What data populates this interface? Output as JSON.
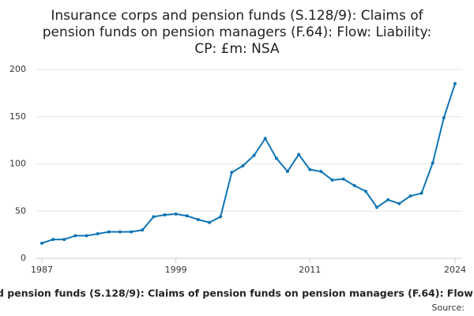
{
  "chart_data": {
    "type": "line",
    "title": [
      "Insurance corps and pension funds (S.128/9): Claims of",
      "pension funds on pension managers (F.64): Flow: Liability:",
      "CP: £m: NSA"
    ],
    "x": [
      1987,
      1988,
      1989,
      1990,
      1991,
      1992,
      1993,
      1994,
      1995,
      1996,
      1997,
      1998,
      1999,
      2000,
      2001,
      2002,
      2003,
      2004,
      2005,
      2006,
      2007,
      2008,
      2009,
      2010,
      2011,
      2012,
      2013,
      2014,
      2015,
      2016,
      2017,
      2018,
      2019,
      2020,
      2021,
      2022,
      2023,
      2024
    ],
    "series": [
      {
        "name": "d pension funds (S.128/9): Claims of pension funds on pension managers (F.64): Flow:",
        "color": "#0f75b5",
        "values": [
          16,
          20,
          20,
          24,
          24,
          26,
          28,
          28,
          28,
          30,
          44,
          46,
          47,
          45,
          41,
          38,
          44,
          91,
          98,
          109,
          127,
          106,
          92,
          110,
          94,
          92,
          83,
          84,
          77,
          71,
          54,
          62,
          58,
          66,
          69,
          101,
          149,
          185
        ]
      }
    ],
    "xlim": [
      1987,
      2024
    ],
    "xticks": [
      1987,
      1999,
      2011,
      2024
    ],
    "ylim": [
      0,
      200
    ],
    "yticks": [
      0,
      50,
      100,
      150,
      200
    ],
    "grid": true,
    "source": "Source:"
  }
}
